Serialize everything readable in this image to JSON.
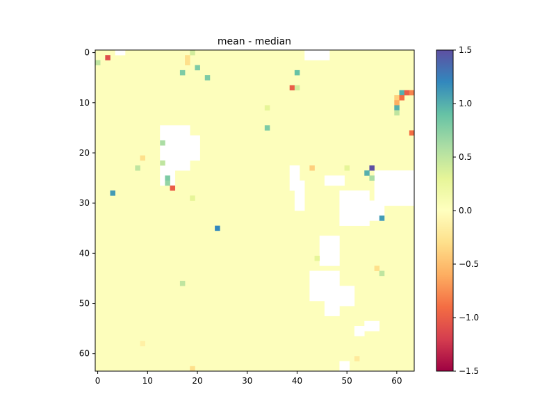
{
  "chart_data": {
    "type": "heatmap",
    "title": "mean - median",
    "xlabel": "",
    "ylabel": "",
    "grid_size": [
      64,
      64
    ],
    "x_ticks": [
      0,
      10,
      20,
      30,
      40,
      50,
      60
    ],
    "y_ticks": [
      0,
      10,
      20,
      30,
      40,
      50,
      60
    ],
    "y_axis_inverted": true,
    "colormap": "Spectral",
    "colorbar": {
      "vmin": -1.5,
      "vmax": 1.5,
      "ticks": [
        1.5,
        1.0,
        0.5,
        0.0,
        -0.5,
        -1.0,
        -1.5
      ],
      "tick_labels": [
        "1.5",
        "1.0",
        "0.5",
        "0.0",
        "−0.5",
        "−1.0",
        "−1.5"
      ]
    },
    "background_value": 0.02,
    "masked_regions": [
      {
        "r0": 0,
        "r1": 1,
        "c0": 4,
        "c1": 6
      },
      {
        "r0": 0,
        "r1": 2,
        "c0": 42,
        "c1": 47
      },
      {
        "r0": 15,
        "r1": 24,
        "c0": 13,
        "c1": 19
      },
      {
        "r0": 17,
        "r1": 22,
        "c0": 19,
        "c1": 21
      },
      {
        "r0": 24,
        "r1": 27,
        "c0": 13,
        "c1": 16
      },
      {
        "r0": 23,
        "r1": 28,
        "c0": 39,
        "c1": 41
      },
      {
        "r0": 26,
        "r1": 32,
        "c0": 40,
        "c1": 42
      },
      {
        "r0": 25,
        "r1": 27,
        "c0": 46,
        "c1": 50
      },
      {
        "r0": 24,
        "r1": 31,
        "c0": 56,
        "c1": 64
      },
      {
        "r0": 28,
        "r1": 35,
        "c0": 49,
        "c1": 55
      },
      {
        "r0": 30,
        "r1": 34,
        "c0": 55,
        "c1": 58
      },
      {
        "r0": 37,
        "r1": 43,
        "c0": 45,
        "c1": 49
      },
      {
        "r0": 44,
        "r1": 50,
        "c0": 43,
        "c1": 49
      },
      {
        "r0": 47,
        "r1": 51,
        "c0": 49,
        "c1": 52
      },
      {
        "r0": 48,
        "r1": 53,
        "c0": 46,
        "c1": 49
      },
      {
        "r0": 54,
        "r1": 56,
        "c0": 54,
        "c1": 57
      },
      {
        "r0": 55,
        "r1": 57,
        "c0": 52,
        "c1": 54
      },
      {
        "r0": 62,
        "r1": 64,
        "c0": 49,
        "c1": 51
      }
    ],
    "cells": [
      {
        "row": 1,
        "col": 2,
        "value": -1.1
      },
      {
        "row": 2,
        "col": 0,
        "value": 0.5
      },
      {
        "row": 0,
        "col": 19,
        "value": 0.4
      },
      {
        "row": 1,
        "col": 18,
        "value": -0.3
      },
      {
        "row": 2,
        "col": 18,
        "value": -0.3
      },
      {
        "row": 3,
        "col": 20,
        "value": 0.8
      },
      {
        "row": 4,
        "col": 17,
        "value": 0.8
      },
      {
        "row": 5,
        "col": 22,
        "value": 0.8
      },
      {
        "row": 4,
        "col": 40,
        "value": 0.9
      },
      {
        "row": 7,
        "col": 39,
        "value": -1.0
      },
      {
        "row": 7,
        "col": 40,
        "value": 0.4
      },
      {
        "row": 8,
        "col": 61,
        "value": 1.0
      },
      {
        "row": 8,
        "col": 62,
        "value": -1.0
      },
      {
        "row": 8,
        "col": 63,
        "value": -0.8
      },
      {
        "row": 9,
        "col": 60,
        "value": -0.4
      },
      {
        "row": 9,
        "col": 61,
        "value": -0.9
      },
      {
        "row": 10,
        "col": 60,
        "value": -0.6
      },
      {
        "row": 11,
        "col": 60,
        "value": 1.0
      },
      {
        "row": 12,
        "col": 60,
        "value": 0.5
      },
      {
        "row": 11,
        "col": 34,
        "value": 0.3
      },
      {
        "row": 15,
        "col": 34,
        "value": 0.8
      },
      {
        "row": 16,
        "col": 63,
        "value": -0.9
      },
      {
        "row": 18,
        "col": 13,
        "value": 0.6
      },
      {
        "row": 21,
        "col": 9,
        "value": -0.3
      },
      {
        "row": 22,
        "col": 13,
        "value": 0.5
      },
      {
        "row": 23,
        "col": 8,
        "value": 0.5
      },
      {
        "row": 23,
        "col": 43,
        "value": -0.4
      },
      {
        "row": 23,
        "col": 50,
        "value": 0.3
      },
      {
        "row": 23,
        "col": 55,
        "value": 1.5
      },
      {
        "row": 24,
        "col": 54,
        "value": 1.0
      },
      {
        "row": 25,
        "col": 14,
        "value": 0.8
      },
      {
        "row": 26,
        "col": 14,
        "value": 0.7
      },
      {
        "row": 25,
        "col": 55,
        "value": 0.6
      },
      {
        "row": 27,
        "col": 15,
        "value": -1.0
      },
      {
        "row": 28,
        "col": 3,
        "value": 1.1
      },
      {
        "row": 29,
        "col": 19,
        "value": 0.3
      },
      {
        "row": 33,
        "col": 57,
        "value": 1.1
      },
      {
        "row": 35,
        "col": 24,
        "value": 1.2
      },
      {
        "row": 41,
        "col": 44,
        "value": 0.3
      },
      {
        "row": 43,
        "col": 56,
        "value": -0.3
      },
      {
        "row": 44,
        "col": 57,
        "value": 0.5
      },
      {
        "row": 46,
        "col": 17,
        "value": 0.5
      },
      {
        "row": 63,
        "col": 19,
        "value": -0.3
      },
      {
        "row": 61,
        "col": 52,
        "value": -0.2
      },
      {
        "row": 58,
        "col": 9,
        "value": -0.15
      }
    ]
  }
}
